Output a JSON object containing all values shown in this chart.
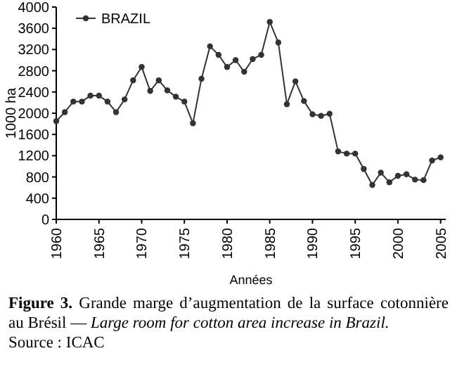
{
  "chart_data": {
    "type": "line",
    "xlabel": "Années",
    "ylabel": "1000 ha",
    "x": [
      1960,
      1961,
      1962,
      1963,
      1964,
      1965,
      1966,
      1967,
      1968,
      1969,
      1970,
      1971,
      1972,
      1973,
      1974,
      1975,
      1976,
      1977,
      1978,
      1979,
      1980,
      1981,
      1982,
      1983,
      1984,
      1985,
      1986,
      1987,
      1988,
      1989,
      1990,
      1991,
      1992,
      1993,
      1994,
      1995,
      1996,
      1997,
      1998,
      1999,
      2000,
      2001,
      2002,
      2003,
      2004,
      2005
    ],
    "series": [
      {
        "name": "BRAZIL",
        "color": "#333333",
        "values": [
          1850,
          2020,
          2220,
          2220,
          2330,
          2330,
          2220,
          2020,
          2260,
          2620,
          2870,
          2420,
          2620,
          2430,
          2310,
          2220,
          1810,
          2650,
          3260,
          3100,
          2870,
          3000,
          2780,
          3020,
          3100,
          3720,
          3330,
          2170,
          2600,
          2230,
          1980,
          1950,
          1990,
          1280,
          1240,
          1240,
          950,
          650,
          880,
          700,
          820,
          850,
          750,
          740,
          1110,
          1170
        ]
      }
    ],
    "xlim": [
      1960,
      2005.6
    ],
    "xticks": [
      1960,
      1965,
      1970,
      1975,
      1980,
      1985,
      1990,
      1995,
      2000,
      2005
    ],
    "ylim": [
      0,
      4000
    ],
    "yticks": [
      0,
      400,
      800,
      1200,
      1600,
      2000,
      2400,
      2800,
      3200,
      3600,
      4000
    ],
    "grid": false,
    "legend": "top left",
    "marker": "circle",
    "line_style": "solid",
    "annotations": [
      "Figure 3.",
      "Grande marge d’augmentation de la surface cotonnière au Brésil —",
      "Large room for cotton area increase in Brazil.",
      "Source : ICAC"
    ]
  }
}
